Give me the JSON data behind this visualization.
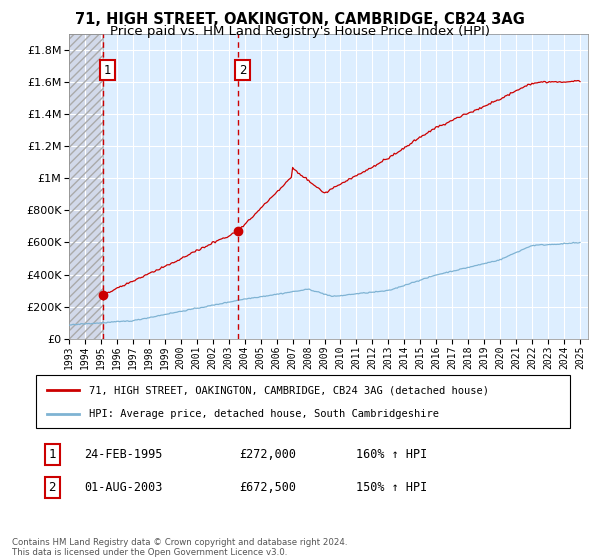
{
  "title_line1": "71, HIGH STREET, OAKINGTON, CAMBRIDGE, CB24 3AG",
  "title_line2": "Price paid vs. HM Land Registry's House Price Index (HPI)",
  "legend_label1": "71, HIGH STREET, OAKINGTON, CAMBRIDGE, CB24 3AG (detached house)",
  "legend_label2": "HPI: Average price, detached house, South Cambridgeshire",
  "ann1_num": "1",
  "ann1_date": "24-FEB-1995",
  "ann1_price": "£272,000",
  "ann1_hpi": "160% ↑ HPI",
  "ann1_x": 1995.12,
  "ann1_y": 272000,
  "ann2_num": "2",
  "ann2_date": "01-AUG-2003",
  "ann2_price": "£672,500",
  "ann2_hpi": "150% ↑ HPI",
  "ann2_x": 2003.58,
  "ann2_y": 672500,
  "footnote": "Contains HM Land Registry data © Crown copyright and database right 2024.\nThis data is licensed under the Open Government Licence v3.0.",
  "ylim_min": 0,
  "ylim_max": 1900000,
  "xlim_start": 1993.0,
  "xlim_end": 2025.5,
  "hatch_end_year": 1995.12,
  "plot_bg_color": "#ddeeff",
  "grid_color": "#ffffff",
  "line1_color": "#cc0000",
  "line2_color": "#7fb3d3",
  "vline_color": "#cc0000",
  "title_fontsize": 10.5,
  "subtitle_fontsize": 9.5,
  "yticks": [
    0,
    200000,
    400000,
    600000,
    800000,
    1000000,
    1200000,
    1400000,
    1600000,
    1800000
  ],
  "xtick_years": [
    1993,
    1994,
    1995,
    1996,
    1997,
    1998,
    1999,
    2000,
    2001,
    2002,
    2003,
    2004,
    2005,
    2006,
    2007,
    2008,
    2009,
    2010,
    2011,
    2012,
    2013,
    2014,
    2015,
    2016,
    2017,
    2018,
    2019,
    2020,
    2021,
    2022,
    2023,
    2024,
    2025
  ]
}
